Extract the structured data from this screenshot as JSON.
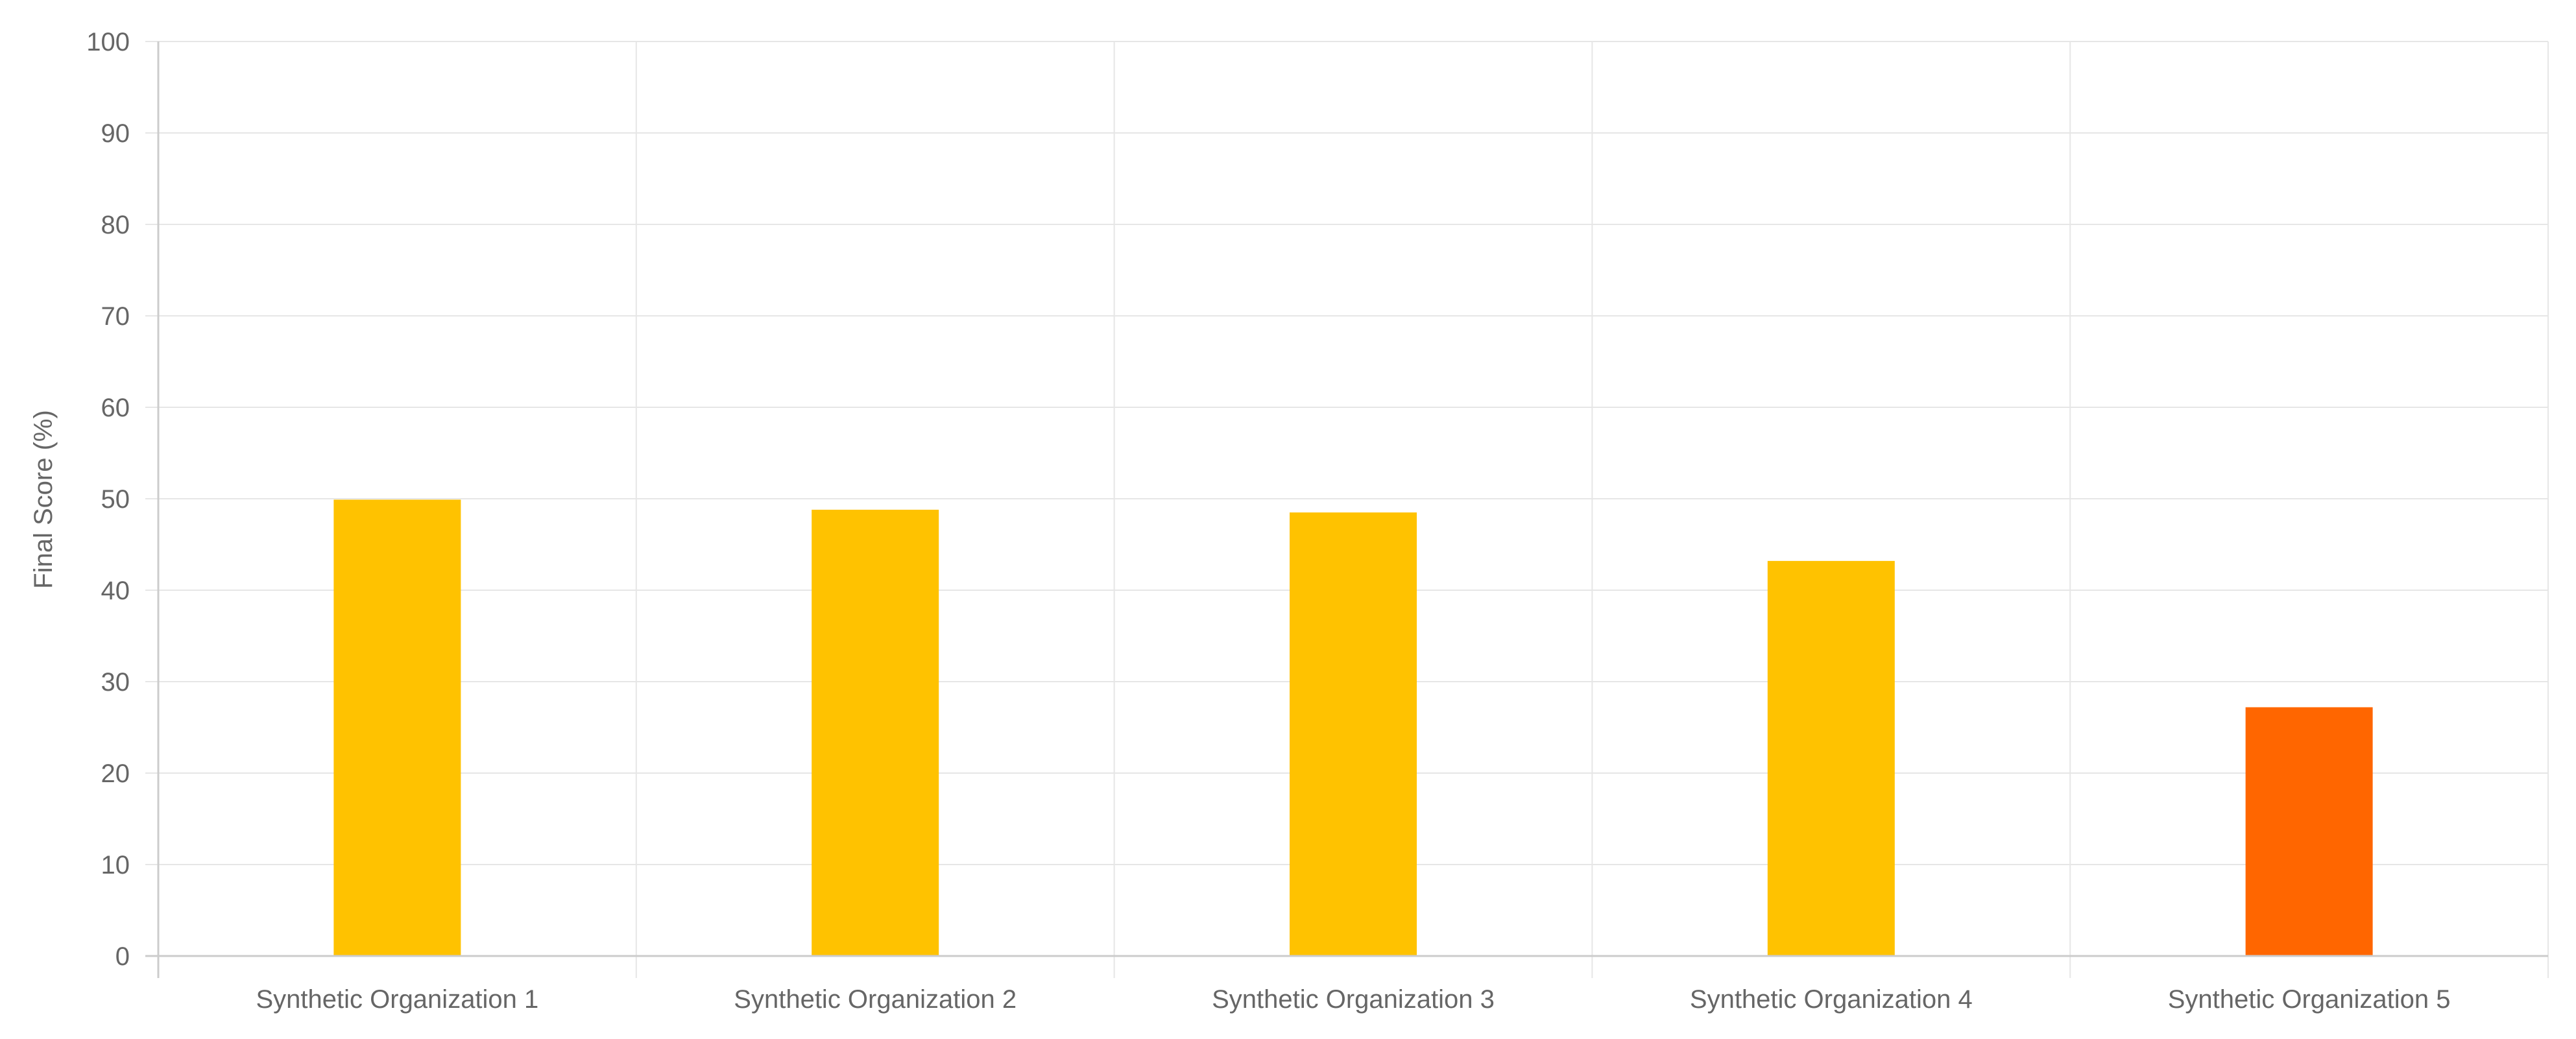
{
  "chart_data": {
    "type": "bar",
    "title": "",
    "xlabel": "",
    "ylabel": "Final Score (%)",
    "ylim": [
      0,
      100
    ],
    "yticks": [
      0,
      10,
      20,
      30,
      40,
      50,
      60,
      70,
      80,
      90,
      100
    ],
    "grid": true,
    "categories": [
      "Synthetic Organization 1",
      "Synthetic Organization 2",
      "Synthetic Organization 3",
      "Synthetic Organization 4",
      "Synthetic Organization 5"
    ],
    "values": [
      49.9,
      48.8,
      48.5,
      43.2,
      27.2
    ],
    "bar_colors": [
      "#FFC200",
      "#FFC200",
      "#FFC200",
      "#FFC200",
      "#FF6600"
    ],
    "grid_color": "#e6e6e6",
    "axis_color": "#cccccc",
    "label_color": "#666666"
  }
}
